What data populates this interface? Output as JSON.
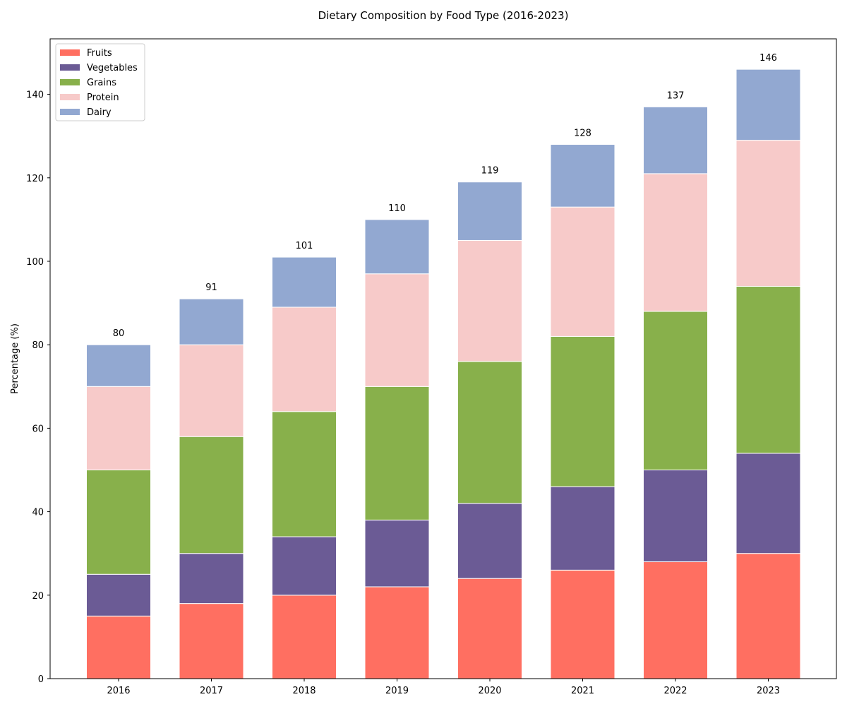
{
  "chart_data": {
    "type": "bar",
    "stacked": true,
    "title": "Dietary Composition by Food Type (2016-2023)",
    "xlabel": "",
    "ylabel": "Percentage (%)",
    "categories": [
      "2016",
      "2017",
      "2018",
      "2019",
      "2020",
      "2021",
      "2022",
      "2023"
    ],
    "ylim": [
      0,
      153.3
    ],
    "yticks": [
      0,
      20,
      40,
      60,
      80,
      100,
      120,
      140
    ],
    "grid": false,
    "legend_position": "top-left",
    "series": [
      {
        "name": "Fruits",
        "color": "#ff6f61",
        "values": [
          15,
          18,
          20,
          22,
          24,
          26,
          28,
          30
        ]
      },
      {
        "name": "Vegetables",
        "color": "#6b5b95",
        "values": [
          10,
          12,
          14,
          16,
          18,
          20,
          22,
          24
        ]
      },
      {
        "name": "Grains",
        "color": "#88b04b",
        "values": [
          25,
          28,
          30,
          32,
          34,
          36,
          38,
          40
        ]
      },
      {
        "name": "Protein",
        "color": "#f7cac9",
        "values": [
          20,
          22,
          25,
          27,
          29,
          31,
          33,
          35
        ]
      },
      {
        "name": "Dairy",
        "color": "#92a8d1",
        "values": [
          10,
          11,
          12,
          13,
          14,
          15,
          16,
          17
        ]
      }
    ],
    "totals": [
      "80",
      "91",
      "101",
      "110",
      "119",
      "128",
      "137",
      "146"
    ]
  }
}
